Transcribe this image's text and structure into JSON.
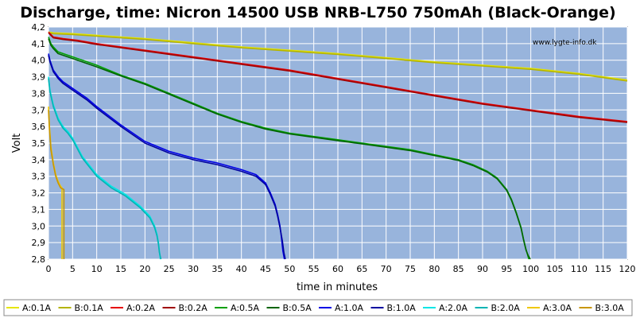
{
  "chart_data": {
    "type": "line",
    "title": "Discharge, time: Nicron 14500 USB NRB-L750 750mAh  (Black-Orange)",
    "xlabel": "time in minutes",
    "ylabel": "Volt",
    "watermark": "www.lygte-info.dk",
    "xlim": [
      0,
      120
    ],
    "ylim": [
      2.8,
      4.2
    ],
    "x_ticks": [
      "0",
      "5",
      "10",
      "15",
      "20",
      "25",
      "30",
      "35",
      "40",
      "45",
      "50",
      "55",
      "60",
      "65",
      "70",
      "75",
      "80",
      "85",
      "90",
      "95",
      "100",
      "105",
      "110",
      "115",
      "120"
    ],
    "y_ticks": [
      "2,8",
      "2,9",
      "3,0",
      "3,1",
      "3,2",
      "3,3",
      "3,4",
      "3,5",
      "3,6",
      "3,7",
      "3,8",
      "3,9",
      "4,0",
      "4,1",
      "4,2"
    ],
    "grid": true,
    "legend_position": "bottom",
    "plot_background": "#98b4dc",
    "series": [
      {
        "name": "A:0.1A",
        "color": "#e6e600",
        "x": [
          0,
          1,
          5,
          10,
          20,
          40,
          60,
          80,
          100,
          110,
          120
        ],
        "y": [
          4.17,
          4.165,
          4.16,
          4.15,
          4.13,
          4.08,
          4.04,
          3.99,
          3.95,
          3.92,
          3.88
        ]
      },
      {
        "name": "B:0.1A",
        "color": "#b4b400",
        "x": [
          0,
          1,
          5,
          10,
          20,
          40,
          60,
          80,
          100,
          110,
          120
        ],
        "y": [
          4.165,
          4.16,
          4.155,
          4.145,
          4.125,
          4.075,
          4.035,
          3.985,
          3.945,
          3.915,
          3.875
        ]
      },
      {
        "name": "A:0.2A",
        "color": "#e60000",
        "x": [
          0,
          1,
          3,
          6,
          10,
          20,
          30,
          40,
          50,
          60,
          70,
          80,
          90,
          100,
          110,
          120
        ],
        "y": [
          4.17,
          4.14,
          4.13,
          4.12,
          4.1,
          4.06,
          4.02,
          3.98,
          3.94,
          3.89,
          3.84,
          3.79,
          3.74,
          3.7,
          3.66,
          3.63
        ]
      },
      {
        "name": "B:0.2A",
        "color": "#a00000",
        "x": [
          0,
          1,
          3,
          6,
          10,
          20,
          30,
          40,
          50,
          60,
          70,
          80,
          90,
          100,
          110,
          120
        ],
        "y": [
          4.165,
          4.135,
          4.125,
          4.115,
          4.095,
          4.055,
          4.015,
          3.975,
          3.935,
          3.885,
          3.835,
          3.785,
          3.735,
          3.695,
          3.655,
          3.625
        ]
      },
      {
        "name": "A:0.5A",
        "color": "#00a000",
        "x": [
          0,
          0.5,
          1,
          2,
          5,
          10,
          15,
          20,
          25,
          30,
          35,
          40,
          45,
          50,
          55,
          60,
          65,
          70,
          75,
          80,
          85,
          88,
          91,
          93,
          95,
          96,
          97,
          98,
          98.5,
          99,
          99.3,
          99.6
        ],
        "y": [
          4.14,
          4.1,
          4.08,
          4.05,
          4.02,
          3.97,
          3.91,
          3.86,
          3.8,
          3.74,
          3.68,
          3.63,
          3.59,
          3.56,
          3.54,
          3.52,
          3.5,
          3.48,
          3.46,
          3.43,
          3.4,
          3.37,
          3.33,
          3.29,
          3.22,
          3.16,
          3.08,
          2.99,
          2.92,
          2.86,
          2.83,
          2.8
        ]
      },
      {
        "name": "B:0.5A",
        "color": "#006400",
        "x": [
          0,
          0.5,
          1,
          2,
          5,
          10,
          15,
          20,
          25,
          30,
          35,
          40,
          45,
          50,
          55,
          60,
          65,
          70,
          75,
          80,
          85,
          88,
          91,
          93,
          95,
          96,
          97,
          98,
          98.5,
          99,
          99.5,
          99.9
        ],
        "y": [
          4.13,
          4.09,
          4.07,
          4.04,
          4.01,
          3.96,
          3.905,
          3.855,
          3.795,
          3.735,
          3.675,
          3.625,
          3.585,
          3.555,
          3.535,
          3.515,
          3.495,
          3.475,
          3.455,
          3.425,
          3.395,
          3.365,
          3.325,
          3.285,
          3.215,
          3.155,
          3.075,
          2.985,
          2.915,
          2.855,
          2.82,
          2.8
        ]
      },
      {
        "name": "A:1.0A",
        "color": "#0000e6",
        "x": [
          0,
          0.3,
          1,
          2,
          3,
          5,
          8,
          10,
          15,
          20,
          25,
          30,
          35,
          40,
          43,
          45,
          46,
          47,
          47.5,
          48,
          48.3,
          48.6,
          48.9
        ],
        "y": [
          4.04,
          4.0,
          3.94,
          3.9,
          3.87,
          3.83,
          3.77,
          3.72,
          3.61,
          3.51,
          3.45,
          3.41,
          3.38,
          3.34,
          3.31,
          3.26,
          3.2,
          3.13,
          3.07,
          3.0,
          2.93,
          2.85,
          2.8
        ]
      },
      {
        "name": "B:1.0A",
        "color": "#0000a0",
        "x": [
          0,
          0.3,
          1,
          2,
          3,
          5,
          8,
          10,
          15,
          20,
          25,
          30,
          35,
          40,
          43,
          45,
          46,
          47,
          47.5,
          48,
          48.5,
          48.8,
          49.1
        ],
        "y": [
          4.03,
          3.99,
          3.93,
          3.89,
          3.86,
          3.82,
          3.76,
          3.71,
          3.6,
          3.5,
          3.44,
          3.4,
          3.37,
          3.33,
          3.3,
          3.25,
          3.19,
          3.12,
          3.06,
          2.99,
          2.91,
          2.84,
          2.8
        ]
      },
      {
        "name": "A:2.0A",
        "color": "#00e6e6",
        "x": [
          0,
          0.3,
          1,
          2,
          3,
          4,
          5,
          7,
          10,
          13,
          16,
          19,
          21,
          22,
          22.5,
          22.8,
          23,
          23.2
        ],
        "y": [
          3.9,
          3.82,
          3.73,
          3.65,
          3.6,
          3.57,
          3.53,
          3.42,
          3.31,
          3.24,
          3.19,
          3.12,
          3.06,
          3.0,
          2.95,
          2.9,
          2.85,
          2.8
        ]
      },
      {
        "name": "B:2.0A",
        "color": "#00b4b4",
        "x": [
          0,
          0.3,
          1,
          2,
          3,
          4,
          5,
          7,
          10,
          13,
          16,
          19,
          21,
          22,
          22.5,
          22.8,
          23,
          23.3
        ],
        "y": [
          3.89,
          3.81,
          3.72,
          3.64,
          3.59,
          3.56,
          3.52,
          3.41,
          3.3,
          3.23,
          3.18,
          3.11,
          3.05,
          2.99,
          2.94,
          2.89,
          2.84,
          2.8
        ]
      },
      {
        "name": "A:3.0A",
        "color": "#f0c800",
        "x": [
          0,
          0.2,
          0.5,
          1,
          1.5,
          2,
          2.5,
          2.8,
          2.8
        ],
        "y": [
          3.72,
          3.6,
          3.48,
          3.38,
          3.31,
          3.27,
          3.24,
          3.23,
          2.8
        ]
      },
      {
        "name": "B:3.0A",
        "color": "#c89600",
        "x": [
          0,
          0.2,
          0.5,
          1,
          1.5,
          2,
          2.5,
          3.2,
          3.2
        ],
        "y": [
          3.7,
          3.58,
          3.46,
          3.37,
          3.3,
          3.26,
          3.23,
          3.22,
          2.8
        ]
      }
    ]
  }
}
